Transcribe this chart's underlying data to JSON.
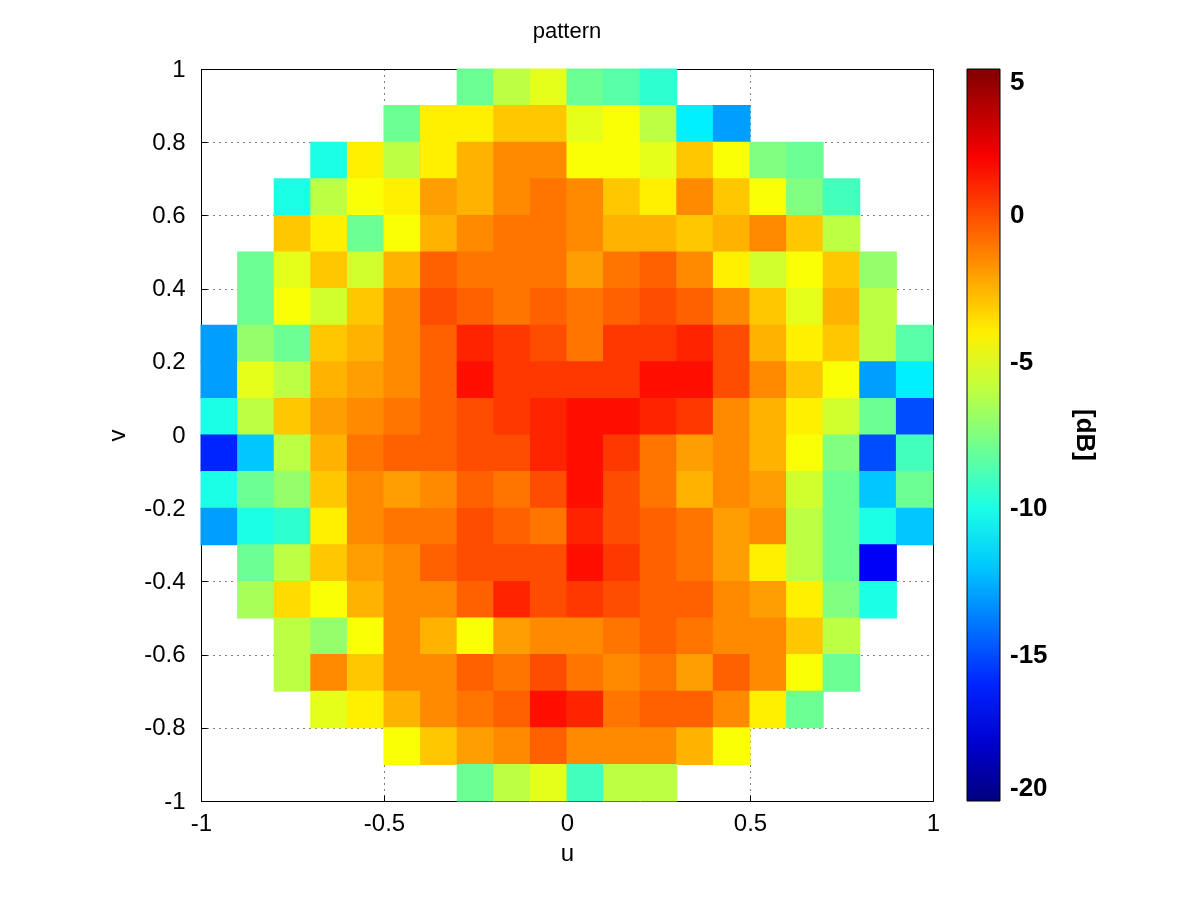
{
  "chart_data": {
    "type": "scatter",
    "title": "pattern",
    "xlabel": "u",
    "ylabel": "v",
    "clabel": "[dB]",
    "marker": "square",
    "x": [
      -0.25,
      -0.15,
      -0.05,
      0.05,
      0.15,
      0.25,
      -0.45,
      -0.35,
      -0.25,
      -0.15,
      -0.05,
      0.05,
      0.15,
      0.25,
      0.35,
      0.45,
      -0.65,
      -0.55,
      -0.45,
      -0.35,
      -0.25,
      -0.15,
      -0.05,
      0.05,
      0.15,
      0.25,
      0.35,
      0.45,
      0.55,
      0.65,
      -0.75,
      -0.65,
      -0.55,
      -0.45,
      -0.35,
      -0.25,
      -0.15,
      -0.05,
      0.05,
      0.15,
      0.25,
      0.35,
      0.45,
      0.55,
      0.65,
      0.75,
      -0.75,
      -0.65,
      -0.55,
      -0.45,
      -0.35,
      -0.25,
      -0.15,
      -0.05,
      0.05,
      0.15,
      0.25,
      0.35,
      0.45,
      0.55,
      0.65,
      0.75,
      -0.85,
      -0.75,
      -0.65,
      -0.55,
      -0.45,
      -0.35,
      -0.25,
      -0.15,
      -0.05,
      0.05,
      0.15,
      0.25,
      0.35,
      0.45,
      0.55,
      0.65,
      0.75,
      0.85,
      -0.85,
      -0.75,
      -0.65,
      -0.55,
      -0.45,
      -0.35,
      -0.25,
      -0.15,
      -0.05,
      0.05,
      0.15,
      0.25,
      0.35,
      0.45,
      0.55,
      0.65,
      0.75,
      0.85,
      -0.95,
      -0.85,
      -0.75,
      -0.65,
      -0.55,
      -0.45,
      -0.35,
      -0.25,
      -0.15,
      -0.05,
      0.05,
      0.15,
      0.25,
      0.35,
      0.45,
      0.55,
      0.65,
      0.75,
      0.85,
      0.95,
      -0.95,
      -0.85,
      -0.75,
      -0.65,
      -0.55,
      -0.45,
      -0.35,
      -0.25,
      -0.15,
      -0.05,
      0.05,
      0.15,
      0.25,
      0.35,
      0.45,
      0.55,
      0.65,
      0.75,
      0.85,
      0.95,
      -0.95,
      -0.85,
      -0.75,
      -0.65,
      -0.55,
      -0.45,
      -0.35,
      -0.25,
      -0.15,
      -0.05,
      0.05,
      0.15,
      0.25,
      0.35,
      0.45,
      0.55,
      0.65,
      0.75,
      0.85,
      0.95,
      -0.95,
      -0.85,
      -0.75,
      -0.65,
      -0.55,
      -0.45,
      -0.35,
      -0.25,
      -0.15,
      -0.05,
      0.05,
      0.15,
      0.25,
      0.35,
      0.45,
      0.55,
      0.65,
      0.75,
      0.85,
      0.95,
      -0.95,
      -0.85,
      -0.75,
      -0.65,
      -0.55,
      -0.45,
      -0.35,
      -0.25,
      -0.15,
      -0.05,
      0.05,
      0.15,
      0.25,
      0.35,
      0.45,
      0.55,
      0.65,
      0.75,
      0.85,
      0.95,
      -0.95,
      -0.85,
      -0.75,
      -0.65,
      -0.55,
      -0.45,
      -0.35,
      -0.25,
      -0.15,
      -0.05,
      0.05,
      0.15,
      0.25,
      0.35,
      0.45,
      0.55,
      0.65,
      0.75,
      0.85,
      0.95,
      -0.85,
      -0.75,
      -0.65,
      -0.55,
      -0.45,
      -0.35,
      -0.25,
      -0.15,
      -0.05,
      0.05,
      0.15,
      0.25,
      0.35,
      0.45,
      0.55,
      0.65,
      0.75,
      0.85,
      -0.85,
      -0.75,
      -0.65,
      -0.55,
      -0.45,
      -0.35,
      -0.25,
      -0.15,
      -0.05,
      0.05,
      0.15,
      0.25,
      0.35,
      0.45,
      0.55,
      0.65,
      0.75,
      0.85,
      -0.75,
      -0.65,
      -0.55,
      -0.45,
      -0.35,
      -0.25,
      -0.15,
      -0.05,
      0.05,
      0.15,
      0.25,
      0.35,
      0.45,
      0.55,
      0.65,
      0.75,
      -0.75,
      -0.65,
      -0.55,
      -0.45,
      -0.35,
      -0.25,
      -0.15,
      -0.05,
      0.05,
      0.15,
      0.25,
      0.35,
      0.45,
      0.55,
      0.65,
      0.75,
      -0.65,
      -0.55,
      -0.45,
      -0.35,
      -0.25,
      -0.15,
      -0.05,
      0.05,
      0.15,
      0.25,
      0.35,
      0.45,
      0.55,
      0.65,
      -0.45,
      -0.35,
      -0.25,
      -0.15,
      -0.05,
      0.05,
      0.15,
      0.25,
      0.35,
      0.45,
      -0.25,
      -0.15,
      -0.05,
      0.05,
      0.15,
      0.25
    ],
    "values": [
      0.95,
      0.95,
      0.95,
      0.95,
      0.95,
      0.95,
      0.85,
      0.85,
      0.85,
      0.85,
      0.85,
      0.85,
      0.85,
      0.85,
      0.85,
      0.85,
      0.75,
      0.75,
      0.75,
      0.75,
      0.75,
      0.75,
      0.75,
      0.75,
      0.75,
      0.75,
      0.75,
      0.75,
      0.75,
      0.75,
      0.65,
      0.65,
      0.65,
      0.65,
      0.65,
      0.65,
      0.65,
      0.65,
      0.65,
      0.65,
      0.65,
      0.65,
      0.65,
      0.65,
      0.65,
      0.65,
      0.55,
      0.55,
      0.55,
      0.55,
      0.55,
      0.55,
      0.55,
      0.55,
      0.55,
      0.55,
      0.55,
      0.55,
      0.55,
      0.55,
      0.55,
      0.55,
      0.45,
      0.45,
      0.45,
      0.45,
      0.45,
      0.45,
      0.45,
      0.45,
      0.45,
      0.45,
      0.45,
      0.45,
      0.45,
      0.45,
      0.45,
      0.45,
      0.45,
      0.45,
      0.35,
      0.35,
      0.35,
      0.35,
      0.35,
      0.35,
      0.35,
      0.35,
      0.35,
      0.35,
      0.35,
      0.35,
      0.35,
      0.35,
      0.35,
      0.35,
      0.35,
      0.35,
      0.25,
      0.25,
      0.25,
      0.25,
      0.25,
      0.25,
      0.25,
      0.25,
      0.25,
      0.25,
      0.25,
      0.25,
      0.25,
      0.25,
      0.25,
      0.25,
      0.25,
      0.25,
      0.25,
      0.25,
      0.15,
      0.15,
      0.15,
      0.15,
      0.15,
      0.15,
      0.15,
      0.15,
      0.15,
      0.15,
      0.15,
      0.15,
      0.15,
      0.15,
      0.15,
      0.15,
      0.15,
      0.15,
      0.15,
      0.15,
      0.05,
      0.05,
      0.05,
      0.05,
      0.05,
      0.05,
      0.05,
      0.05,
      0.05,
      0.05,
      0.05,
      0.05,
      0.05,
      0.05,
      0.05,
      0.05,
      0.05,
      0.05,
      0.05,
      0.05,
      -0.05,
      -0.05,
      -0.05,
      -0.05,
      -0.05,
      -0.05,
      -0.05,
      -0.05,
      -0.05,
      -0.05,
      -0.05,
      -0.05,
      -0.05,
      -0.05,
      -0.05,
      -0.05,
      -0.05,
      -0.05,
      -0.05,
      -0.05,
      -0.15,
      -0.15,
      -0.15,
      -0.15,
      -0.15,
      -0.15,
      -0.15,
      -0.15,
      -0.15,
      -0.15,
      -0.15,
      -0.15,
      -0.15,
      -0.15,
      -0.15,
      -0.15,
      -0.15,
      -0.15,
      -0.15,
      -0.15,
      -0.25,
      -0.25,
      -0.25,
      -0.25,
      -0.25,
      -0.25,
      -0.25,
      -0.25,
      -0.25,
      -0.25,
      -0.25,
      -0.25,
      -0.25,
      -0.25,
      -0.25,
      -0.25,
      -0.25,
      -0.25,
      -0.25,
      -0.25,
      -0.35,
      -0.35,
      -0.35,
      -0.35,
      -0.35,
      -0.35,
      -0.35,
      -0.35,
      -0.35,
      -0.35,
      -0.35,
      -0.35,
      -0.35,
      -0.35,
      -0.35,
      -0.35,
      -0.35,
      -0.35,
      -0.45,
      -0.45,
      -0.45,
      -0.45,
      -0.45,
      -0.45,
      -0.45,
      -0.45,
      -0.45,
      -0.45,
      -0.45,
      -0.45,
      -0.45,
      -0.45,
      -0.45,
      -0.45,
      -0.45,
      -0.45,
      -0.55,
      -0.55,
      -0.55,
      -0.55,
      -0.55,
      -0.55,
      -0.55,
      -0.55,
      -0.55,
      -0.55,
      -0.55,
      -0.55,
      -0.55,
      -0.55,
      -0.55,
      -0.55,
      -0.65,
      -0.65,
      -0.65,
      -0.65,
      -0.65,
      -0.65,
      -0.65,
      -0.65,
      -0.65,
      -0.65,
      -0.65,
      -0.65,
      -0.65,
      -0.65,
      -0.65,
      -0.65,
      -0.75,
      -0.75,
      -0.75,
      -0.75,
      -0.75,
      -0.75,
      -0.75,
      -0.75,
      -0.75,
      -0.75,
      -0.75,
      -0.75,
      -0.75,
      -0.75,
      -0.85,
      -0.85,
      -0.85,
      -0.85,
      -0.85,
      -0.85,
      -0.85,
      -0.85,
      -0.85,
      -0.85,
      -0.95,
      -0.95,
      -0.95,
      -0.95,
      -0.95,
      -0.95
    ],
    "cvalues": [
      -8,
      -6,
      -5,
      -8,
      -8.5,
      -9.5,
      -8,
      -4,
      -4,
      -3,
      -3,
      -5,
      -4.5,
      -6,
      -11,
      -13,
      -10,
      -4,
      -6,
      -4,
      -2.5,
      -1.5,
      -1.5,
      -4.5,
      -4.5,
      -5,
      -3,
      -4.5,
      -7.5,
      -8,
      -10,
      -6,
      -4.5,
      -4,
      -2,
      -2.5,
      -1.5,
      -1,
      -1.5,
      -3,
      -4,
      -1.5,
      -3,
      -4.5,
      -7.5,
      -9,
      -3,
      -4,
      -8,
      -4.5,
      -2.5,
      -1.5,
      -1,
      -1,
      -1.5,
      -2.5,
      -2.5,
      -3,
      -2.5,
      -1.5,
      -3,
      -6,
      -8,
      -5,
      -3,
      -5.5,
      -2.5,
      -0.5,
      -1,
      -1,
      -1,
      -2,
      -1,
      -0.5,
      -1.5,
      -4,
      -5.5,
      -4.5,
      -3,
      -7,
      -8,
      -4.5,
      -5.5,
      -3,
      -1.5,
      0,
      -0.5,
      -1,
      -0.5,
      -1,
      -0.5,
      0,
      -0.5,
      -1.5,
      -3,
      -5,
      -2.5,
      -6,
      -13,
      -7,
      -8,
      -3,
      -2.5,
      -1.5,
      -0.5,
      1,
      0.5,
      0,
      -1,
      0.5,
      0.5,
      1,
      0,
      -2.5,
      -4,
      -3,
      -6,
      -8.5,
      -13,
      -5,
      -6,
      -2.5,
      -2,
      -1.5,
      -0.5,
      1.5,
      0.5,
      0.5,
      0.5,
      0.5,
      1.5,
      1.5,
      0,
      -1.5,
      -3,
      -4.5,
      -13,
      -11,
      -10,
      -6,
      -3,
      -2,
      -1.5,
      -1,
      -0.5,
      0,
      0.5,
      1,
      1.5,
      1.5,
      1,
      0.5,
      -1.5,
      -2.5,
      -4,
      -5.5,
      -8,
      -15,
      -16,
      -12,
      -6,
      -2.5,
      -1,
      -0.5,
      -0.5,
      0,
      0,
      1,
      1.5,
      0.5,
      -1,
      -2,
      -1.5,
      -2.5,
      -4.5,
      -7.5,
      -15,
      -9,
      -10,
      -8,
      -7,
      -3,
      -1.5,
      -2,
      -1.5,
      -0.5,
      -1,
      0,
      1.5,
      0,
      -1,
      -2.5,
      -1.5,
      -2,
      -5.5,
      -8,
      -12,
      -8,
      -13,
      -10,
      -9.5,
      -4,
      -1.5,
      -1,
      -1,
      0,
      -0.5,
      -1,
      1,
      0,
      -0.5,
      -1,
      -2,
      -1.5,
      -6,
      -8,
      -10,
      -12,
      -8,
      -6,
      -3,
      -2,
      -1.5,
      -0.5,
      0,
      0,
      0,
      1.5,
      0.5,
      -0.5,
      -1,
      -2,
      -4,
      -6,
      -8,
      -17,
      -6.5,
      -3.5,
      -4.5,
      -2.5,
      -1.5,
      -1.5,
      -0.5,
      1,
      0,
      0.5,
      0,
      -0.5,
      -0.5,
      -1.5,
      -2,
      -4,
      -7.5,
      -10,
      -6,
      -7,
      -4.5,
      -1.5,
      -2.5,
      -4.5,
      -2,
      -1.5,
      -1.5,
      -1,
      -0.5,
      -1,
      -1.5,
      -1.5,
      -3,
      -6,
      -6,
      -1.5,
      -3,
      -1.5,
      -1.5,
      -0.5,
      -1,
      0,
      -1,
      -1.5,
      -1,
      -2,
      -0.5,
      -1.5,
      -4.5,
      -8,
      -5,
      -4,
      -2.5,
      -1.5,
      -1,
      -0.5,
      1.5,
      1,
      -1,
      -0.5,
      -0.5,
      -1.5,
      -4,
      -8,
      -4.5,
      -3,
      -2,
      -1.5,
      -0.5,
      -1.5,
      -1.5,
      -1.5,
      -2.5,
      -4.5,
      -8,
      -6,
      -5,
      -9,
      -6,
      -6
    ],
    "clim": [
      -20,
      5
    ],
    "cticks": [
      -20,
      -15,
      -10,
      -5,
      0,
      5
    ],
    "xlim": [
      -1,
      1
    ],
    "ylim": [
      -1,
      1
    ],
    "xticks": [
      -1,
      -0.5,
      0,
      0.5,
      1
    ],
    "yticks": [
      -1,
      -0.8,
      -0.6,
      -0.4,
      -0.2,
      0,
      0.2,
      0.4,
      0.6,
      0.8,
      1
    ],
    "grid": true
  }
}
